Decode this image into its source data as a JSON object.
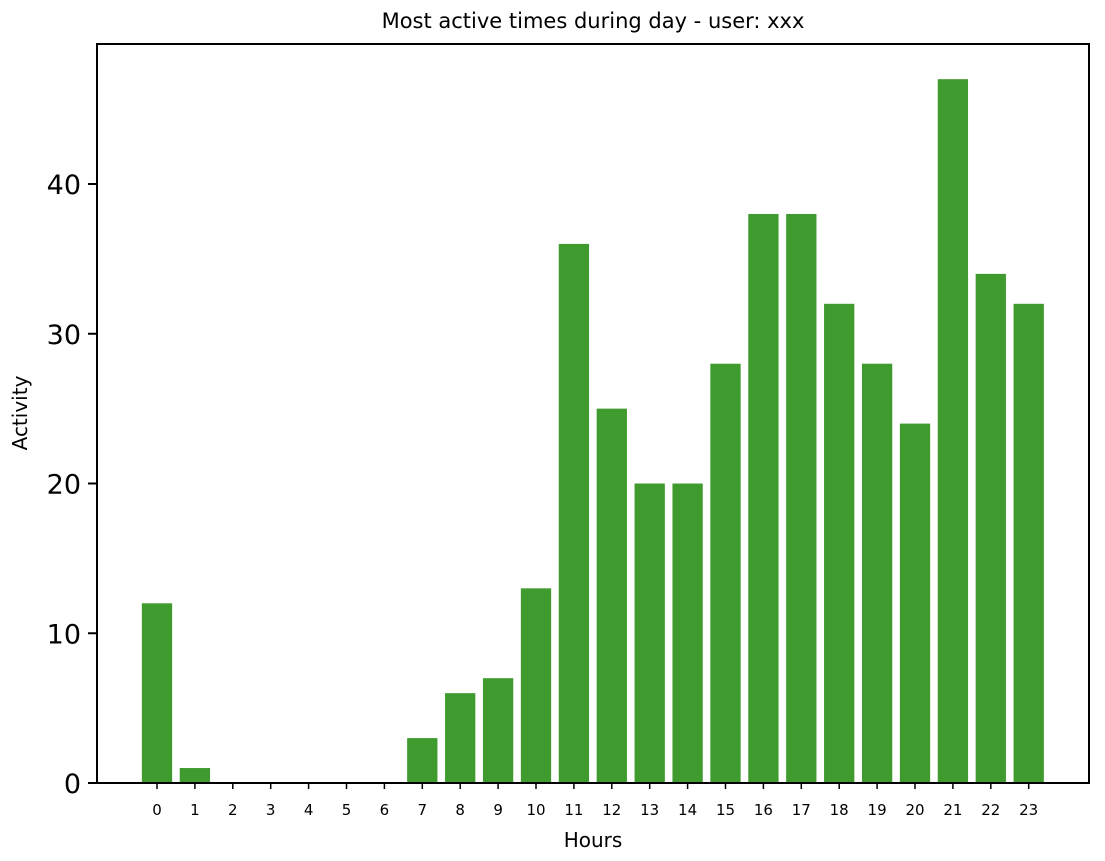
{
  "chart_data": {
    "type": "bar",
    "title": "Most active times during day - user: xxx",
    "xlabel": "Hours",
    "ylabel": "Activity",
    "categories": [
      "0",
      "1",
      "2",
      "3",
      "4",
      "5",
      "6",
      "7",
      "8",
      "9",
      "10",
      "11",
      "12",
      "13",
      "14",
      "15",
      "16",
      "17",
      "18",
      "19",
      "20",
      "21",
      "22",
      "23"
    ],
    "values": [
      12,
      1,
      0,
      0,
      0,
      0,
      0,
      3,
      6,
      7,
      13,
      36,
      25,
      20,
      20,
      28,
      38,
      38,
      32,
      28,
      24,
      47,
      34,
      32
    ],
    "ylim": [
      0,
      49.35
    ],
    "yticks": [
      0,
      10,
      20,
      30,
      40
    ],
    "bar_color": "#3f9b2e",
    "grid": false,
    "legend": "none"
  }
}
